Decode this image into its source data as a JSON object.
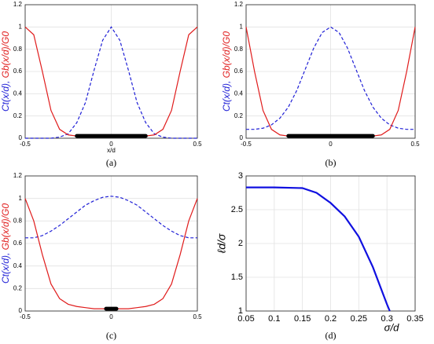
{
  "chart_data": [
    {
      "type": "line",
      "caption": "(a)",
      "xlabel": "x/d",
      "ylabel_parts": [
        "Ct(x/d), ",
        "Gb(x/d)/G0"
      ],
      "ylabel_colors": [
        "#1f1fd6",
        "#e01c1c"
      ],
      "x": [
        -0.5,
        -0.45,
        -0.4,
        -0.35,
        -0.3,
        -0.25,
        -0.2,
        -0.15,
        -0.1,
        -0.05,
        0,
        0.05,
        0.1,
        0.15,
        0.2,
        0.25,
        0.3,
        0.35,
        0.4,
        0.45,
        0.5
      ],
      "series": [
        {
          "color": "#1f1fd6",
          "dashed": true,
          "values": [
            0,
            0,
            0,
            0,
            0.01,
            0.04,
            0.14,
            0.32,
            0.61,
            0.88,
            1,
            0.88,
            0.61,
            0.32,
            0.14,
            0.04,
            0.01,
            0,
            0,
            0,
            0
          ]
        },
        {
          "color": "#e01c1c",
          "dashed": false,
          "values": [
            1,
            0.93,
            0.6,
            0.25,
            0.08,
            0.03,
            0.02,
            0.02,
            0.02,
            0.02,
            0.02,
            0.02,
            0.02,
            0.02,
            0.02,
            0.03,
            0.08,
            0.25,
            0.6,
            0.93,
            1
          ]
        }
      ],
      "highlight": {
        "x": [
          -0.2,
          0.2
        ],
        "y": 0.02,
        "color": "#000000"
      },
      "xlim": [
        -0.5,
        0.5
      ],
      "xticks": [
        -0.5,
        0,
        0.5
      ],
      "ylim": [
        0,
        1.2
      ],
      "yticks": [
        0,
        0.2,
        0.4,
        0.6,
        0.8,
        1,
        1.2
      ],
      "grid": true
    },
    {
      "type": "line",
      "caption": "(b)",
      "ylabel_parts": [
        "Ct(x/d), ",
        "Gb(x/d)/G0"
      ],
      "ylabel_colors": [
        "#1f1fd6",
        "#e01c1c"
      ],
      "x": [
        -0.5,
        -0.45,
        -0.4,
        -0.35,
        -0.3,
        -0.25,
        -0.2,
        -0.15,
        -0.1,
        -0.05,
        0,
        0.05,
        0.1,
        0.15,
        0.2,
        0.25,
        0.3,
        0.35,
        0.4,
        0.45,
        0.5
      ],
      "series": [
        {
          "color": "#1f1fd6",
          "dashed": true,
          "values": [
            0.08,
            0.08,
            0.09,
            0.12,
            0.18,
            0.28,
            0.43,
            0.62,
            0.81,
            0.95,
            1,
            0.95,
            0.81,
            0.62,
            0.43,
            0.28,
            0.18,
            0.12,
            0.09,
            0.08,
            0.08
          ]
        },
        {
          "color": "#e01c1c",
          "dashed": false,
          "values": [
            1,
            0.6,
            0.25,
            0.08,
            0.03,
            0.02,
            0.02,
            0.02,
            0.02,
            0.02,
            0.02,
            0.02,
            0.02,
            0.02,
            0.02,
            0.02,
            0.03,
            0.08,
            0.25,
            0.6,
            1
          ]
        }
      ],
      "highlight": {
        "x": [
          -0.25,
          0.25
        ],
        "y": 0.02,
        "color": "#000000"
      },
      "xlim": [
        -0.5,
        0.5
      ],
      "xticks": [
        -0.5,
        0,
        0.5
      ],
      "ylim": [
        0,
        1.2
      ],
      "yticks": [
        0,
        0.2,
        0.4,
        0.6,
        0.8,
        1,
        1.2
      ],
      "grid": true
    },
    {
      "type": "line",
      "caption": "(c)",
      "ylabel_parts": [
        "Ct(x/d), ",
        "Gb(x/d)/G0"
      ],
      "ylabel_colors": [
        "#1f1fd6",
        "#e01c1c"
      ],
      "x": [
        -0.5,
        -0.45,
        -0.4,
        -0.35,
        -0.3,
        -0.25,
        -0.2,
        -0.15,
        -0.1,
        -0.05,
        0,
        0.05,
        0.1,
        0.15,
        0.2,
        0.25,
        0.3,
        0.35,
        0.4,
        0.45,
        0.5
      ],
      "series": [
        {
          "color": "#1f1fd6",
          "dashed": true,
          "values": [
            0.65,
            0.65,
            0.67,
            0.71,
            0.76,
            0.82,
            0.88,
            0.94,
            0.98,
            1.01,
            1.02,
            1.01,
            0.98,
            0.94,
            0.88,
            0.82,
            0.76,
            0.71,
            0.67,
            0.65,
            0.65
          ]
        },
        {
          "color": "#e01c1c",
          "dashed": false,
          "values": [
            1,
            0.8,
            0.5,
            0.24,
            0.11,
            0.06,
            0.04,
            0.03,
            0.02,
            0.02,
            0.02,
            0.02,
            0.02,
            0.03,
            0.04,
            0.06,
            0.11,
            0.24,
            0.5,
            0.8,
            1
          ]
        }
      ],
      "highlight": {
        "x": [
          -0.03,
          0.03
        ],
        "y": 0.02,
        "color": "#000000"
      },
      "xlim": [
        -0.5,
        0.5
      ],
      "xticks": [
        -0.5,
        0,
        0.5
      ],
      "ylim": [
        0,
        1.2
      ],
      "yticks": [
        0,
        0.2,
        0.4,
        0.6,
        0.8,
        1,
        1.2
      ],
      "grid": true
    },
    {
      "type": "line",
      "caption": "(d)",
      "xlabel": "σ/d",
      "ylabel": "ℓd/σ",
      "x": [
        0.05,
        0.1,
        0.15,
        0.175,
        0.2,
        0.225,
        0.25,
        0.275,
        0.3,
        0.305
      ],
      "series": [
        {
          "color": "#1010e0",
          "dashed": false,
          "values": [
            2.83,
            2.83,
            2.82,
            2.75,
            2.6,
            2.4,
            2.1,
            1.65,
            1.1,
            1.0
          ]
        }
      ],
      "xlim": [
        0.05,
        0.35
      ],
      "xticks": [
        0.05,
        0.1,
        0.15,
        0.2,
        0.25,
        0.3,
        0.35
      ],
      "ylim": [
        1,
        3
      ],
      "yticks": [
        1,
        1.5,
        2,
        2.5,
        3
      ],
      "grid": true
    }
  ]
}
